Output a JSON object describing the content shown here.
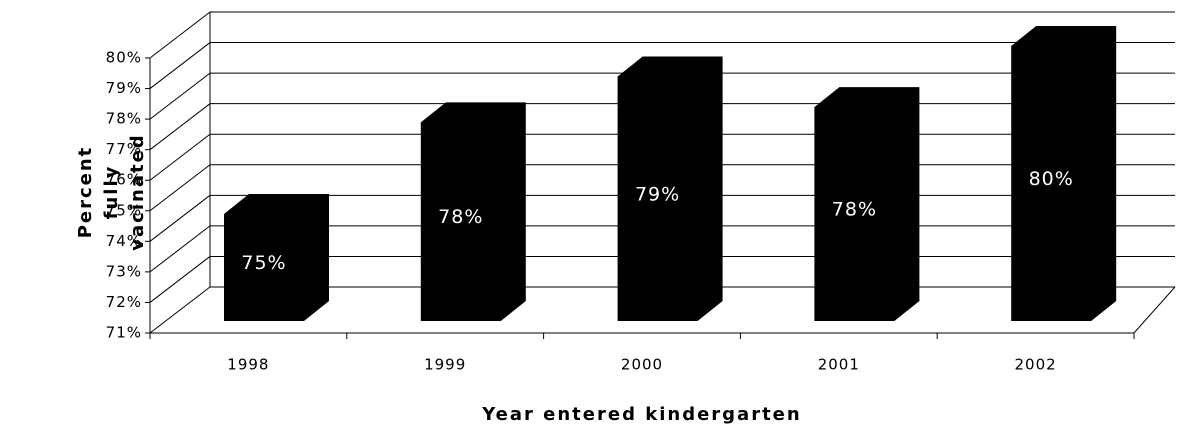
{
  "chart_data": {
    "type": "bar3d",
    "xlabel": "Year entered kindergarten",
    "ylabel": "Percent fully vacinated",
    "categories": [
      "1998",
      "1999",
      "2000",
      "2001",
      "2002"
    ],
    "values": [
      74.5,
      77.5,
      79.0,
      78.0,
      80.0
    ],
    "value_labels": [
      "75%",
      "78%",
      "79%",
      "78%",
      "80%"
    ],
    "color": "#000000",
    "ylim": [
      71,
      80
    ],
    "yticks": [
      {
        "value": 71,
        "label": "71%"
      },
      {
        "value": 72,
        "label": "72%"
      },
      {
        "value": 73,
        "label": "73%"
      },
      {
        "value": 74,
        "label": "74%"
      },
      {
        "value": 75,
        "label": "75%"
      },
      {
        "value": 76,
        "label": "76%"
      },
      {
        "value": 77,
        "label": "77%"
      },
      {
        "value": 78,
        "label": "78%"
      },
      {
        "value": 79,
        "label": "79%"
      },
      {
        "value": 80,
        "label": "80%"
      }
    ],
    "grid": true
  }
}
